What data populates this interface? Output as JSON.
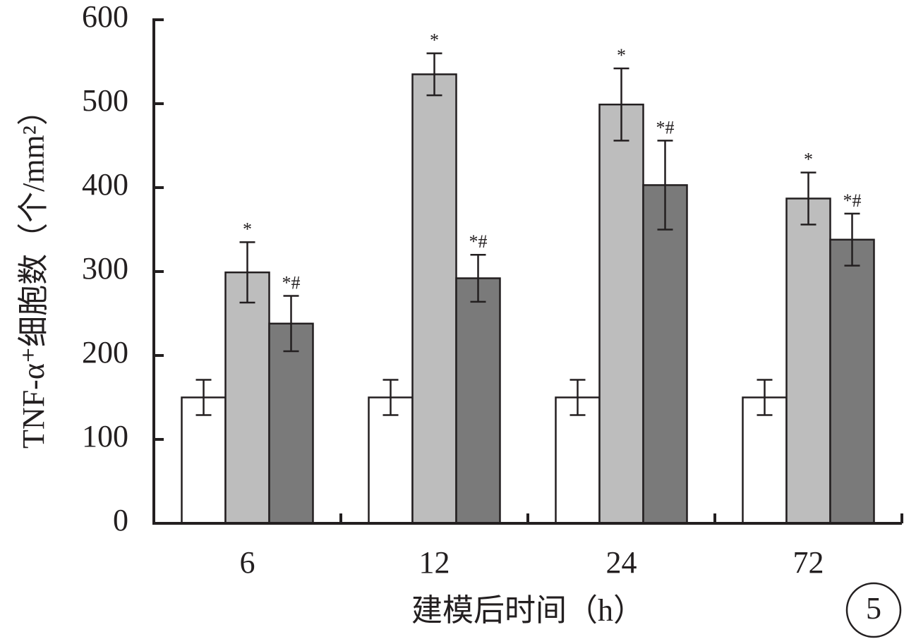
{
  "chart_data": {
    "type": "bar",
    "ylabel": "TNF-α⁺细胞数（个/mm²）",
    "xlabel": "建模后时间（h）",
    "panel_label": "5",
    "categories": [
      "6",
      "12",
      "24",
      "72"
    ],
    "series": [
      {
        "color": "#ffffff",
        "values": [
          150,
          150,
          150,
          150
        ],
        "errors": [
          21,
          21,
          21,
          21
        ]
      },
      {
        "color": "#bdbdbd",
        "values": [
          299,
          535,
          499,
          387
        ],
        "errors": [
          36,
          25,
          43,
          31
        ],
        "annotations": [
          "*",
          "*",
          "*",
          "*"
        ]
      },
      {
        "color": "#7a7a7a",
        "values": [
          238,
          292,
          403,
          338
        ],
        "errors": [
          33,
          28,
          53,
          31
        ],
        "annotations": [
          "*#",
          "*#",
          "*#",
          "*#"
        ]
      }
    ],
    "ylim": [
      0,
      600
    ],
    "yticks": [
      0,
      100,
      200,
      300,
      400,
      500,
      600
    ]
  }
}
